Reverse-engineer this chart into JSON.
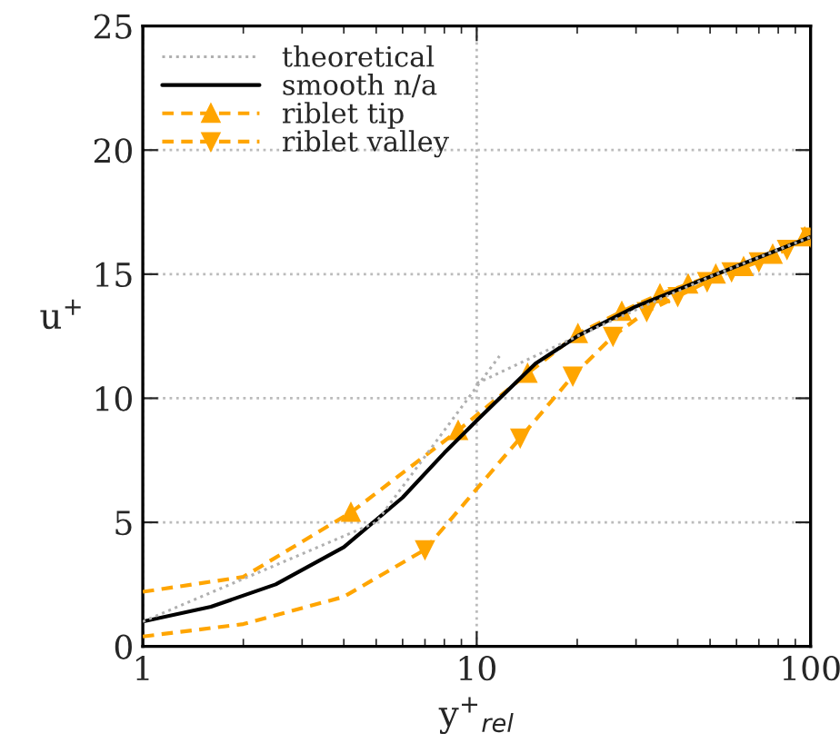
{
  "chart_data": {
    "type": "line",
    "xlabel": "y$^{+}$$_{rel}$",
    "ylabel": "u$^{+}$",
    "log": "x",
    "xlim": [
      1,
      100
    ],
    "xticks": [
      1,
      10,
      100
    ],
    "ylim": [
      0,
      25
    ],
    "yticks": [
      0,
      5,
      10,
      15,
      20,
      25
    ],
    "grid": true,
    "legend": "top left",
    "series": [
      {
        "name": "theoretical",
        "color": "#b0b0b0",
        "line_style": "dotted",
        "marker": "none",
        "x": [
          1,
          5,
          11.7,
          null,
          10,
          20,
          50,
          100
        ],
        "values": [
          1,
          5,
          11.7,
          null,
          10.6,
          12.5,
          14.9,
          16.5
        ]
      },
      {
        "name": "smooth n/a",
        "color": "#000000",
        "line_style": "solid",
        "marker": "none",
        "x": [
          1,
          1.6,
          2.5,
          4,
          6,
          8,
          10,
          15,
          20,
          30,
          50,
          100
        ],
        "values": [
          1.0,
          1.6,
          2.5,
          4.0,
          6.0,
          7.8,
          9.1,
          11.4,
          12.5,
          13.7,
          14.9,
          16.5
        ]
      },
      {
        "name": "riblet tip",
        "color": "#ffa500",
        "line_style": "dashed",
        "marker": "triangle",
        "x": [
          4.2,
          8.8,
          14.2,
          20.1,
          27.2,
          35.4,
          43,
          52,
          63,
          77,
          96
        ],
        "values": [
          5.4,
          8.7,
          11.0,
          12.6,
          13.5,
          14.2,
          14.6,
          15.0,
          15.3,
          15.8,
          16.5
        ]
      },
      {
        "color": "#ffa500",
        "line_style": "dashed",
        "marker": "none",
        "x": [
          1,
          2,
          4.2
        ],
        "values": [
          2.2,
          2.8,
          5.4
        ]
      },
      {
        "name": "riblet valley",
        "color": "#ffa500",
        "line_style": "dashed",
        "marker": "triangle_down",
        "x": [
          7.0,
          13.5,
          19.4,
          25.6,
          32.3,
          40,
          49,
          58,
          70,
          85,
          100
        ],
        "values": [
          3.9,
          8.4,
          10.9,
          12.5,
          13.5,
          14.1,
          14.7,
          15.1,
          15.5,
          16.0,
          16.5
        ]
      },
      {
        "color": "#ffa500",
        "line_style": "dashed",
        "marker": "none",
        "x": [
          1,
          2,
          4,
          7.0
        ],
        "values": [
          0.4,
          0.9,
          2.0,
          3.9
        ]
      }
    ]
  }
}
